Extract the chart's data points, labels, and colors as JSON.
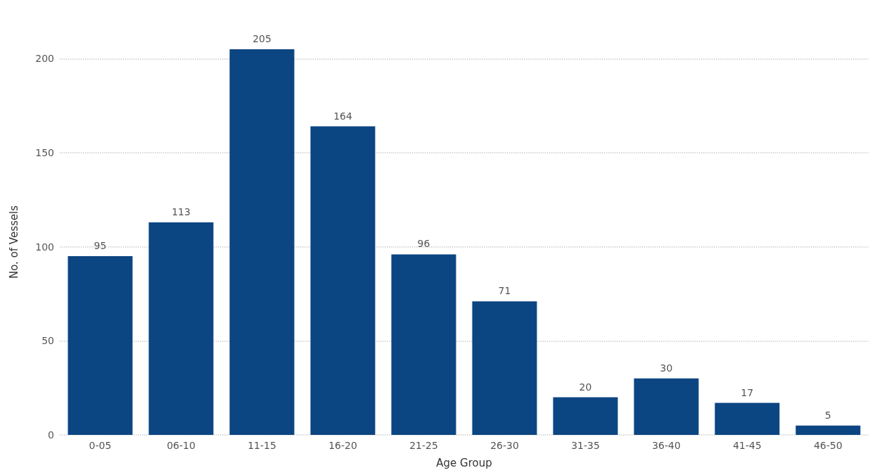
{
  "chart_data": {
    "type": "bar",
    "xlabel": "Age Group",
    "ylabel": "No. of Vessels",
    "categories": [
      "0-05",
      "06-10",
      "11-15",
      "16-20",
      "21-25",
      "26-30",
      "31-35",
      "36-40",
      "41-45",
      "46-50"
    ],
    "values": [
      95,
      113,
      205,
      164,
      96,
      71,
      20,
      30,
      17,
      5
    ],
    "color": "#0b4582",
    "ylim": [
      0,
      205
    ],
    "yticks": [
      0,
      50,
      100,
      150,
      200
    ],
    "grid": "y",
    "data_labels": true
  }
}
